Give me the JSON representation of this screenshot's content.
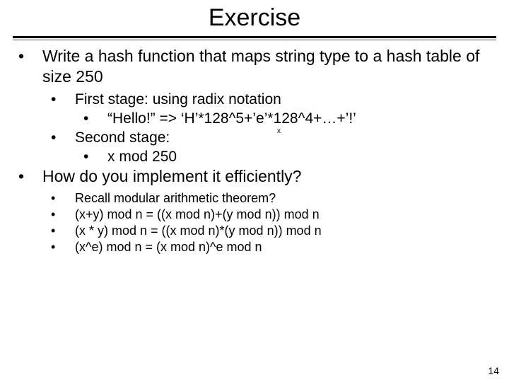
{
  "title": "Exercise",
  "page_number": "14",
  "colors": {
    "background": "#ffffff",
    "text": "#000000",
    "rule_thick": "#000000",
    "rule_thin": "#555555"
  },
  "typography": {
    "font_family": "Arial",
    "title_fontsize": 34,
    "body_fontsize": 23,
    "sub_fontsize": 21,
    "small_fontsize": 18,
    "pagenum_fontsize": 14
  },
  "bullets": {
    "main1": "Write a hash function that maps string type to a hash table of size 250",
    "sub1a": "First stage:  using radix notation",
    "sub1a1": "“Hello!” => ‘H’*128^5+’e’*128^4+…+’!’",
    "sub1b_prefix": "Second stage:",
    "sub1b_sup": "x",
    "sub1b1": "x mod 250",
    "main2": "How do you implement it efficiently?",
    "sub2a": "Recall modular arithmetic theorem?",
    "sub2b": "(x+y) mod n = ((x mod n)+(y mod n)) mod n",
    "sub2c": "(x * y) mod n = ((x mod n)*(y mod n)) mod n",
    "sub2d": "(x^e) mod n = (x mod n)^e mod n"
  }
}
